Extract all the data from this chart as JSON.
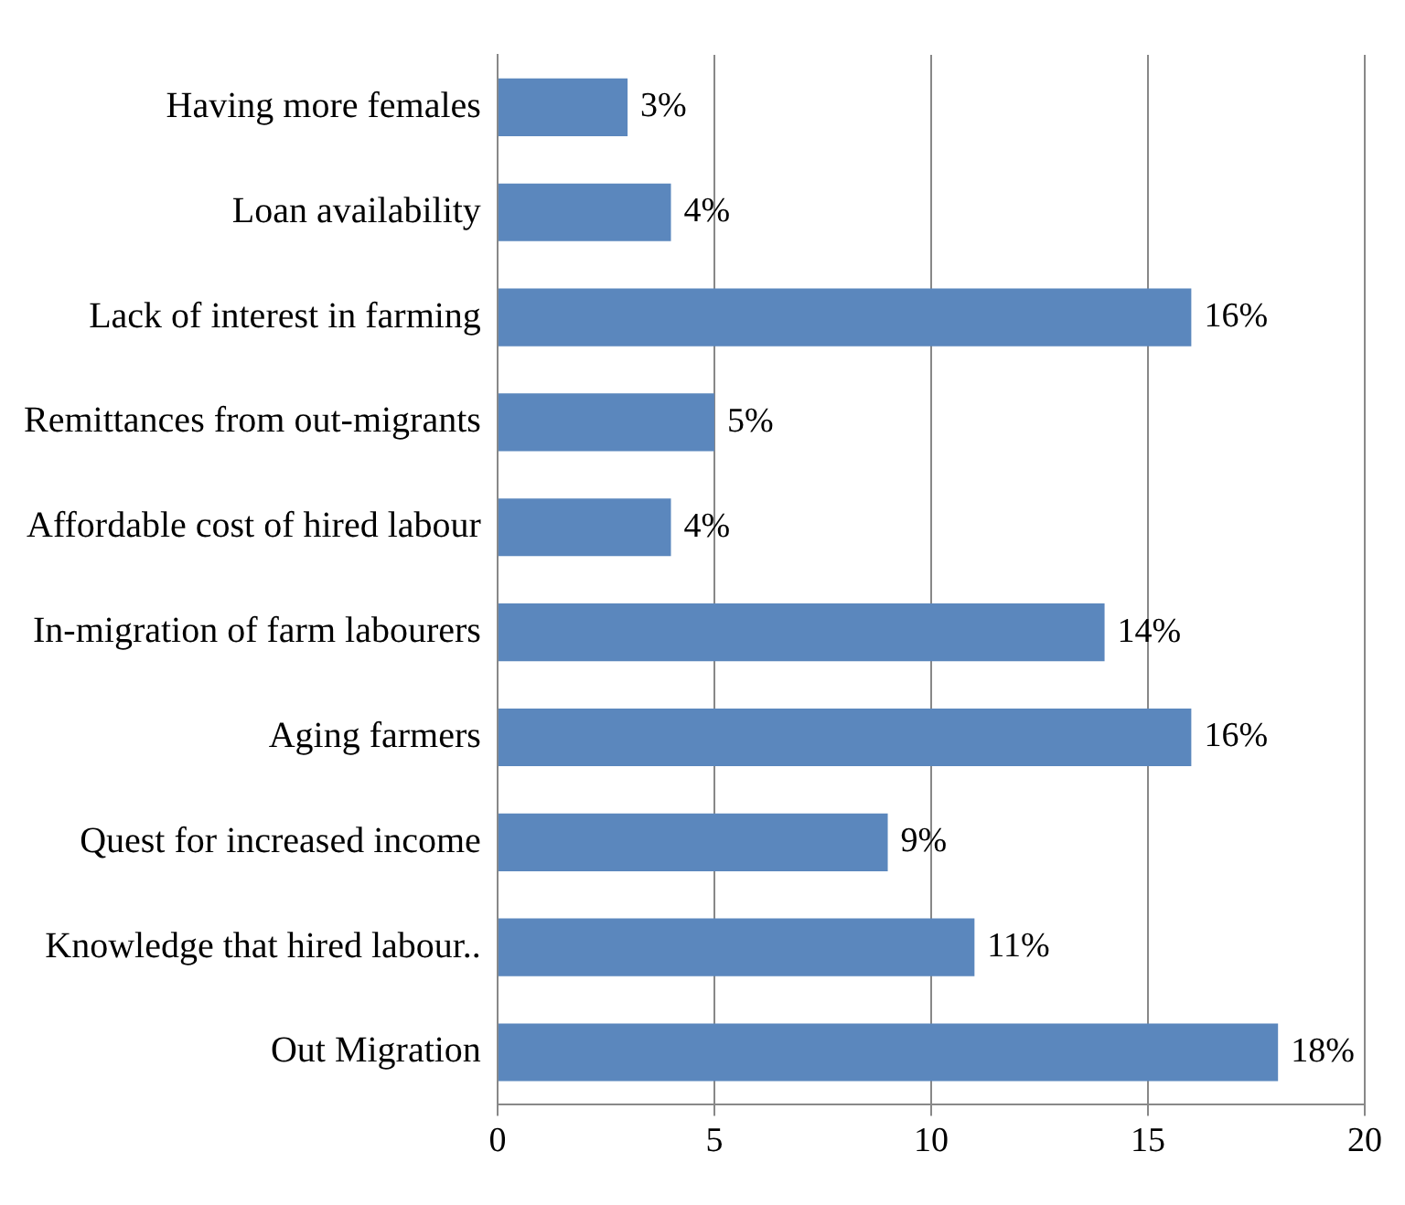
{
  "chart_data": {
    "type": "bar",
    "orientation": "horizontal",
    "categories": [
      "Having more females",
      "Loan availability",
      "Lack of interest in farming",
      "Remittances from out-migrants",
      "Affordable cost of hired labour",
      "In-migration of farm labourers",
      "Aging farmers",
      "Quest for increased income",
      "Knowledge that hired labour..",
      "Out Migration"
    ],
    "values": [
      3,
      4,
      16,
      5,
      4,
      14,
      16,
      9,
      11,
      18
    ],
    "value_labels": [
      "3%",
      "4%",
      "16%",
      "5%",
      "4%",
      "14%",
      "16%",
      "9%",
      "11%",
      "18%"
    ],
    "color": "#5b87bd",
    "xlim": [
      0,
      20
    ],
    "xticks": [
      0,
      5,
      10,
      15,
      20
    ],
    "grid": "x",
    "legend": false
  }
}
